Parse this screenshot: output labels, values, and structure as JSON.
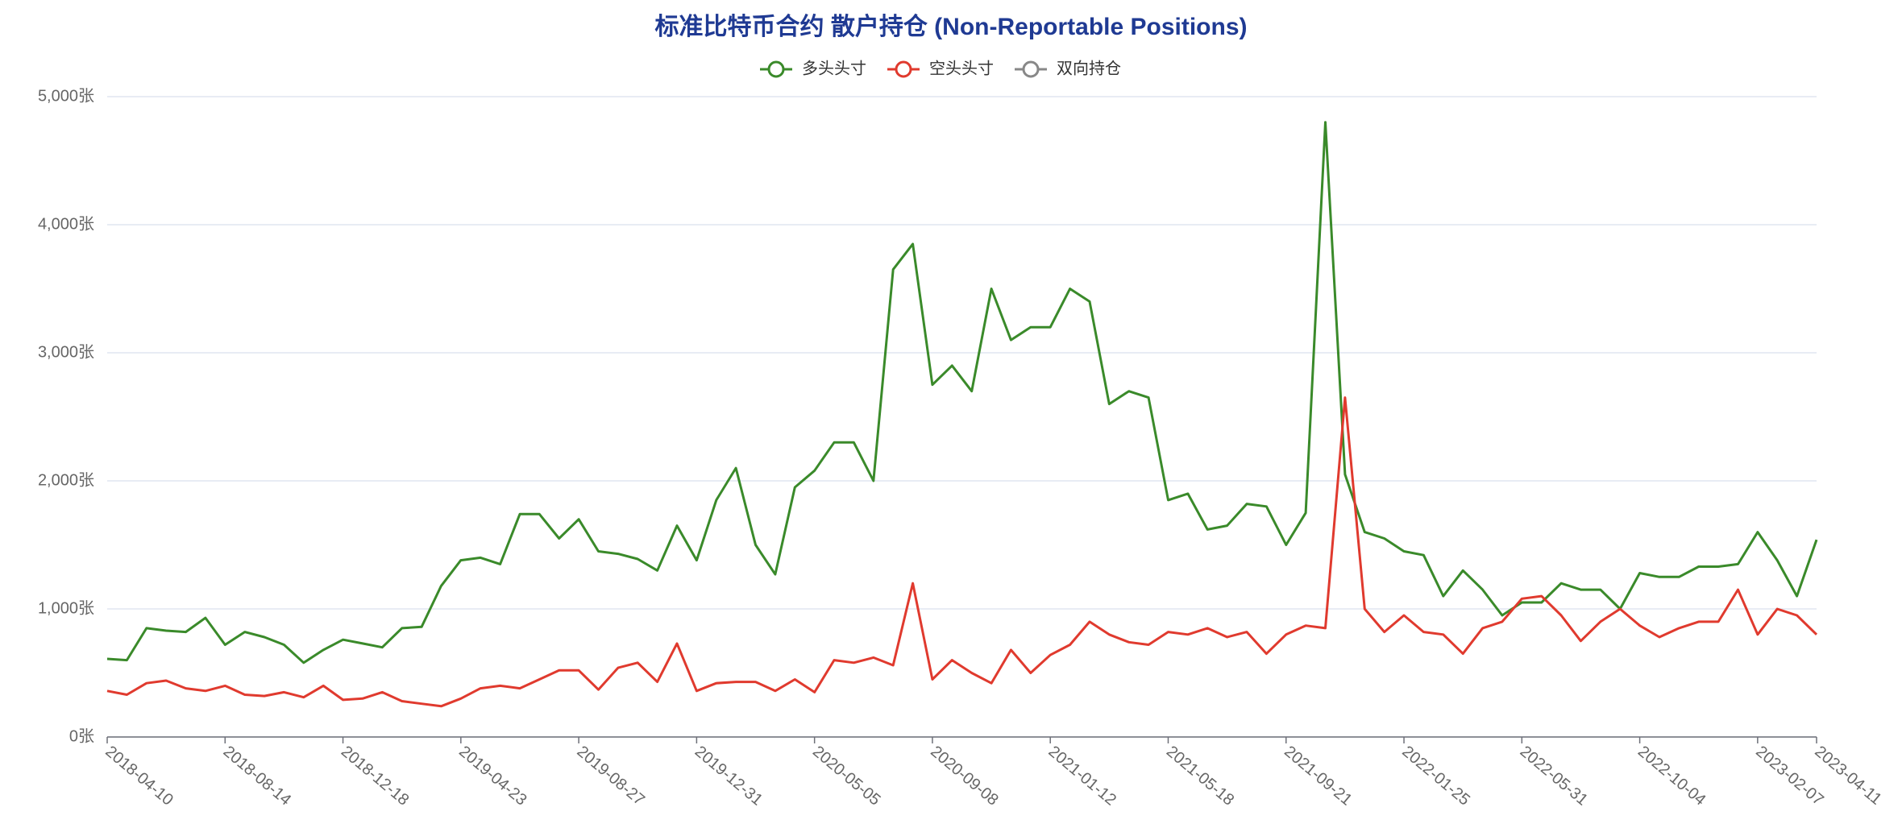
{
  "chart_data": {
    "type": "line",
    "title": "标准比特币合约 散户持仓 (Non-Reportable Positions)",
    "categories": [
      "2018-04-10",
      null,
      null,
      null,
      null,
      null,
      "2018-08-14",
      null,
      null,
      null,
      null,
      null,
      "2018-12-18",
      null,
      null,
      null,
      null,
      null,
      "2019-04-23",
      null,
      null,
      null,
      null,
      null,
      "2019-08-27",
      null,
      null,
      null,
      null,
      null,
      "2019-12-31",
      null,
      null,
      null,
      null,
      null,
      "2020-05-05",
      null,
      null,
      null,
      null,
      null,
      "2020-09-08",
      null,
      null,
      null,
      null,
      null,
      "2021-01-12",
      null,
      null,
      null,
      null,
      null,
      "2021-05-18",
      null,
      null,
      null,
      null,
      null,
      "2021-09-21",
      null,
      null,
      null,
      null,
      null,
      "2022-01-25",
      null,
      null,
      null,
      null,
      null,
      "2022-05-31",
      null,
      null,
      null,
      null,
      null,
      "2022-10-04",
      null,
      null,
      null,
      null,
      null,
      "2023-02-07",
      null,
      null,
      "2023-04-11"
    ],
    "series": [
      {
        "name": "多头头寸",
        "color": "#3a8a2a",
        "values": [
          610,
          600,
          850,
          830,
          820,
          930,
          720,
          820,
          780,
          720,
          580,
          680,
          760,
          730,
          700,
          850,
          860,
          1180,
          1380,
          1400,
          1350,
          1740,
          1740,
          1550,
          1700,
          1450,
          1430,
          1390,
          1300,
          1650,
          1380,
          1850,
          2100,
          1500,
          1270,
          1950,
          2080,
          2300,
          2300,
          2000,
          3650,
          3850,
          2750,
          2900,
          2700,
          3500,
          3100,
          3200,
          3200,
          3500,
          3400,
          2600,
          2700,
          2650,
          1850,
          1900,
          1620,
          1650,
          1820,
          1800,
          1500,
          1750,
          4800,
          2050,
          1600,
          1550,
          1450,
          1420,
          1100,
          1300,
          1150,
          950,
          1050,
          1050,
          1200,
          1150,
          1150,
          1000,
          1280,
          1250,
          1250,
          1330,
          1330,
          1350,
          1600,
          1380,
          1100,
          1540
        ]
      },
      {
        "name": "空头头寸",
        "color": "#e03a2e",
        "values": [
          360,
          330,
          420,
          440,
          380,
          360,
          400,
          330,
          320,
          350,
          310,
          400,
          290,
          300,
          350,
          280,
          260,
          240,
          300,
          380,
          400,
          380,
          450,
          520,
          520,
          370,
          540,
          580,
          430,
          730,
          360,
          420,
          430,
          430,
          360,
          450,
          350,
          600,
          580,
          620,
          560,
          1200,
          450,
          600,
          500,
          420,
          680,
          500,
          640,
          720,
          900,
          800,
          740,
          720,
          820,
          800,
          850,
          780,
          820,
          650,
          800,
          870,
          850,
          2650,
          1000,
          820,
          950,
          820,
          800,
          650,
          850,
          900,
          1080,
          1100,
          950,
          750,
          900,
          1000,
          870,
          780,
          850,
          900,
          900,
          1150,
          800,
          1000,
          950,
          800
        ]
      },
      {
        "name": "双向持仓",
        "color": "#888888",
        "values": [
          null,
          null,
          null,
          null,
          null,
          null,
          null,
          null,
          null,
          null,
          null,
          null,
          null,
          null,
          null,
          null,
          null,
          null,
          null,
          null,
          null,
          null,
          null,
          null,
          null,
          null,
          null,
          null,
          null,
          null,
          null,
          null,
          null,
          null,
          null,
          null,
          null,
          null,
          null,
          null,
          null,
          null,
          null,
          null,
          null,
          null,
          null,
          null,
          null,
          null,
          null,
          null,
          null,
          null,
          null,
          null,
          null,
          null,
          null,
          null,
          null,
          null,
          null,
          null,
          null,
          null,
          null,
          null,
          null,
          null,
          null,
          null,
          null,
          null,
          null,
          null,
          null,
          null,
          null,
          null,
          null,
          null,
          null,
          null,
          null,
          null,
          null,
          null
        ]
      }
    ],
    "ylim": [
      0,
      5000
    ],
    "yticks": [
      {
        "value": 0,
        "label": "0张"
      },
      {
        "value": 1000,
        "label": "1,000张"
      },
      {
        "value": 2000,
        "label": "2,000张"
      },
      {
        "value": 3000,
        "label": "3,000张"
      },
      {
        "value": 4000,
        "label": "4,000张"
      },
      {
        "value": 5000,
        "label": "5,000张"
      }
    ],
    "grid": true
  }
}
